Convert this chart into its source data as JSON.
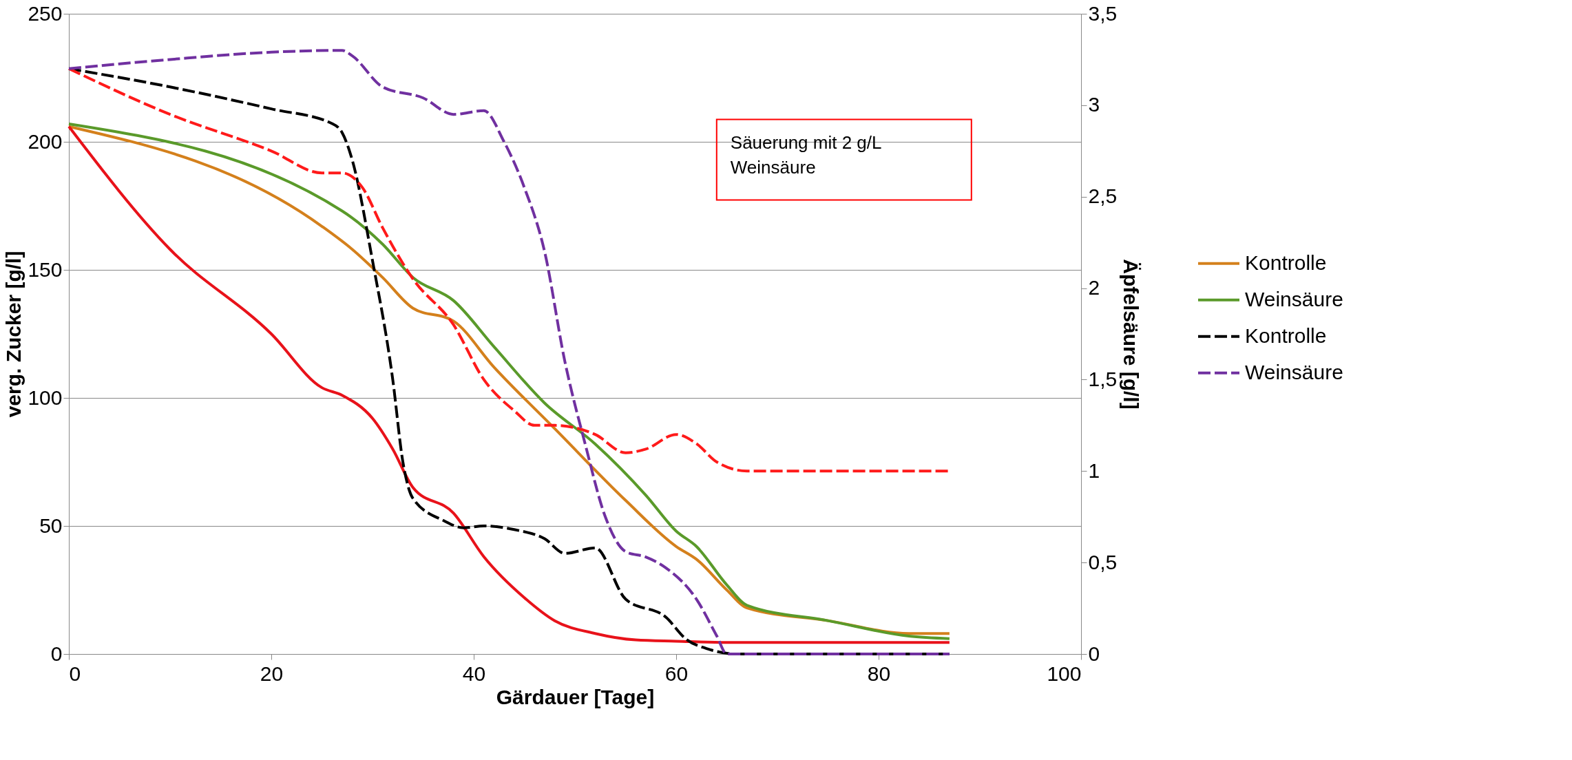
{
  "chart_data": {
    "type": "line",
    "xlabel": "Gärdauer [Tage]",
    "ylabel": "verg. Zucker [g/l]",
    "y2label": "Äpfelsäure [g/l]",
    "xlim": [
      0,
      100
    ],
    "xticks": [
      0,
      20,
      40,
      60,
      80,
      100
    ],
    "ylim": [
      0,
      250
    ],
    "yticks": [
      0,
      50,
      100,
      150,
      200,
      250
    ],
    "y2lim": [
      0,
      3.5
    ],
    "y2ticks": [
      0,
      {
        "value": 0.5,
        "label": "0,5"
      },
      1,
      {
        "value": 1.5,
        "label": "1,5"
      },
      2,
      {
        "value": 2.5,
        "label": "2,5"
      },
      3,
      {
        "value": 3.5,
        "label": "3,5"
      }
    ],
    "grid": "y",
    "legend": "right",
    "annotations": [
      "Säuerung mit 2 g/L\nWeinsäure"
    ],
    "series": [
      {
        "name": "Kontrolle",
        "color": "#d4801c",
        "line_style": "solid",
        "x": [
          0,
          25,
          28,
          31,
          34,
          38,
          42,
          48,
          55,
          60,
          62,
          65,
          67,
          75,
          83,
          87
        ],
        "values": [
          206,
          167,
          158,
          147,
          135,
          130,
          112,
          88,
          60,
          42,
          37,
          25,
          18,
          13,
          8,
          8
        ]
      },
      {
        "color": "#e8121a",
        "line_style": "solid",
        "x": [
          0,
          10,
          20,
          25,
          27,
          30,
          32,
          34,
          38,
          41,
          45,
          48,
          52,
          56,
          60,
          65,
          87
        ],
        "values": [
          206,
          158,
          125,
          104,
          101,
          92,
          80,
          65,
          55,
          38,
          22,
          13,
          8,
          5.5,
          5,
          4.5,
          4.5
        ]
      },
      {
        "name": "Weinsäure",
        "color": "#5a9a2a",
        "line_style": "solid",
        "x": [
          0,
          27,
          31,
          34,
          38,
          42,
          47,
          52,
          57,
          60,
          62,
          65,
          67,
          75,
          83,
          87
        ],
        "values": [
          207,
          173,
          160,
          147,
          138,
          120,
          98,
          82,
          62,
          48,
          42,
          27,
          19,
          13,
          7,
          6
        ]
      },
      {
        "name": "Kontrolle",
        "color": "#000000",
        "line_style": "dashed",
        "axis": "y2",
        "x": [
          0,
          10,
          20,
          26,
          27,
          28,
          30,
          32,
          33,
          34,
          37,
          39,
          41,
          44,
          47,
          49,
          52,
          55,
          59,
          61,
          63,
          66,
          87
        ],
        "values": [
          3.2,
          3.1,
          2.98,
          2.9,
          2.85,
          2.7,
          2.15,
          1.5,
          1.05,
          0.85,
          0.73,
          0.69,
          0.7,
          0.68,
          0.63,
          0.55,
          0.58,
          0.3,
          0.2,
          0.08,
          0.03,
          0,
          0
        ]
      },
      {
        "color": "#ff1a1a",
        "line_style": "dashed",
        "axis": "y2",
        "x": [
          0,
          10,
          20,
          25,
          27,
          29,
          31,
          34,
          38,
          41,
          44,
          46,
          48,
          52,
          55,
          57,
          60,
          62,
          64,
          67,
          87
        ],
        "values": [
          3.2,
          2.95,
          2.75,
          2.63,
          2.63,
          2.55,
          2.33,
          2.05,
          1.8,
          1.5,
          1.33,
          1.25,
          1.25,
          1.2,
          1.1,
          1.12,
          1.2,
          1.15,
          1.05,
          1.0,
          1.0
        ]
      },
      {
        "name": "Weinsäure",
        "color": "#7030a0",
        "line_style": "dashed",
        "axis": "y2",
        "x": [
          0,
          10,
          20,
          27,
          28,
          31,
          35,
          38,
          41,
          43,
          45,
          47,
          49,
          51,
          53,
          55,
          57,
          59,
          62,
          64,
          65,
          87
        ],
        "values": [
          3.2,
          3.25,
          3.29,
          3.3,
          3.27,
          3.1,
          3.04,
          2.95,
          2.97,
          2.8,
          2.55,
          2.2,
          1.6,
          1.15,
          0.75,
          0.56,
          0.53,
          0.47,
          0.3,
          0.1,
          0,
          0
        ]
      }
    ]
  }
}
